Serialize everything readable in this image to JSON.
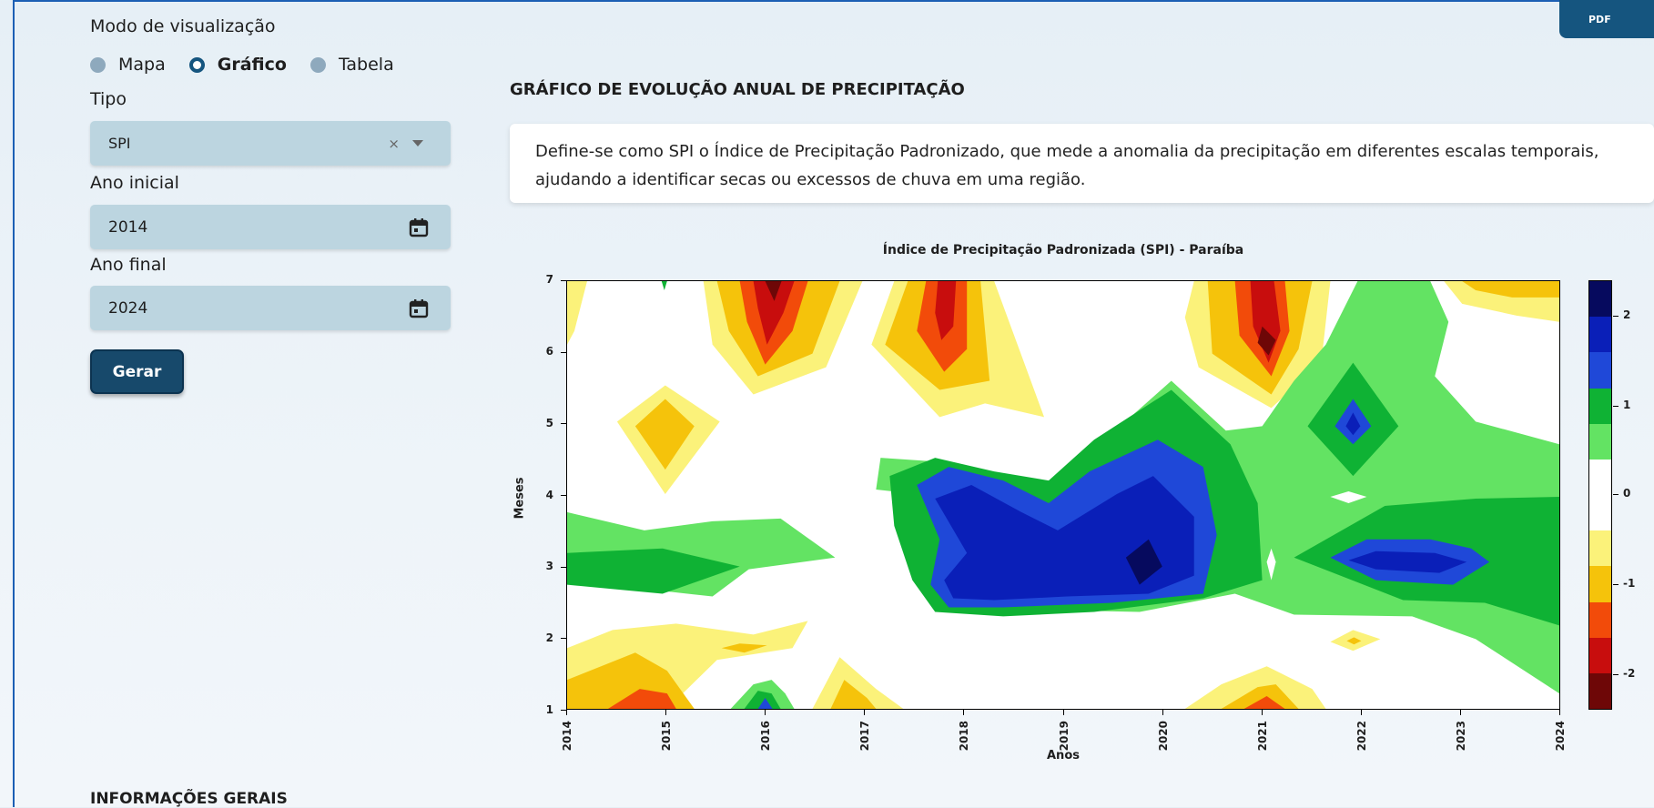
{
  "sidebar": {
    "view_mode_label": "Modo de visualização",
    "radio_options": [
      {
        "label": "Mapa",
        "selected": false
      },
      {
        "label": "Gráfico",
        "selected": true
      },
      {
        "label": "Tabela",
        "selected": false
      }
    ],
    "tipo_label": "Tipo",
    "tipo_value": "SPI",
    "clear_glyph": "×",
    "ano_inicial_label": "Ano inicial",
    "ano_inicial_value": "2014",
    "ano_final_label": "Ano final",
    "ano_final_value": "2024",
    "generate_button": "Gerar"
  },
  "pdf_button": "PDF",
  "main": {
    "section_title": "GRÁFICO DE EVOLUÇÃO ANUAL DE PRECIPITAÇÃO",
    "description": "Define-se como SPI o Índice de Precipitação Padronizado, que mede a anomalia da precipitação em diferentes escalas temporais, ajudando a identificar secas ou excessos de chuva em uma região.",
    "footer_title": "INFORMAÇÕES GERAIS"
  },
  "chart_data": {
    "type": "heatmap",
    "title": "Índice de Precipitação Padronizada (SPI) - Paraíba",
    "xlabel": "Anos",
    "ylabel": "Meses",
    "x_ticks": [
      "2014",
      "2015",
      "2016",
      "2017",
      "2018",
      "2019",
      "2020",
      "2021",
      "2022",
      "2023",
      "2024"
    ],
    "y_ticks": [
      "1",
      "2",
      "3",
      "4",
      "5",
      "6",
      "7"
    ],
    "xlim": [
      2014,
      2024
    ],
    "ylim": [
      1,
      7
    ],
    "colorbar": {
      "ticks": [
        "2",
        "1",
        "0",
        "-1",
        "-2"
      ],
      "levels": [
        2.5,
        -2.5
      ],
      "colors": [
        "#060a5e",
        "#0a1fb8",
        "#1f48d8",
        "#0fb234",
        "#63e363",
        "#ffffff",
        "#ffffff",
        "#fbf27a",
        "#f5c30b",
        "#f24b0a",
        "#c80d0d",
        "#6e0707"
      ]
    },
    "legend_placement": "right (colorbar)"
  }
}
